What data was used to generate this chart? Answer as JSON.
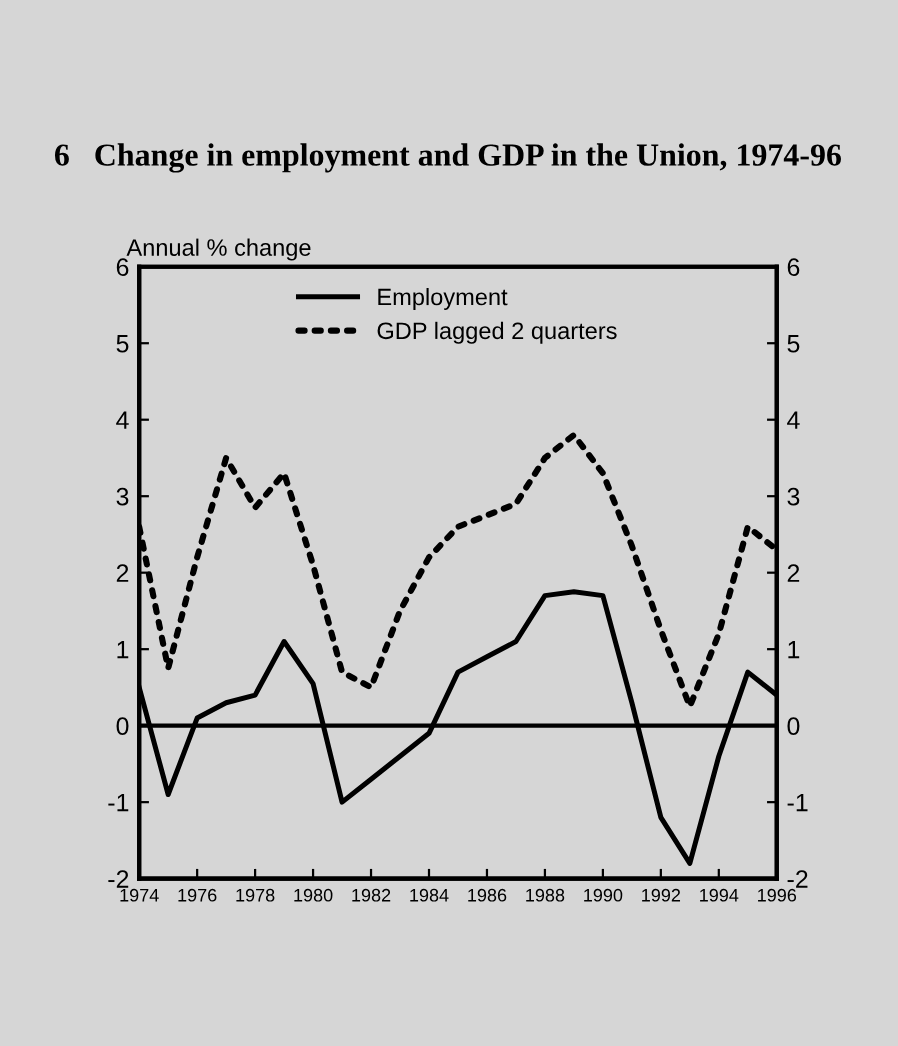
{
  "chart_data": {
    "type": "line",
    "title": "6   Change in employment and GDP in the Union, 1974-96",
    "ylabel": "Annual % change",
    "x": [
      1974,
      1975,
      1976,
      1977,
      1978,
      1979,
      1980,
      1981,
      1982,
      1983,
      1984,
      1985,
      1986,
      1987,
      1988,
      1989,
      1990,
      1991,
      1992,
      1993,
      1994,
      1995,
      1996
    ],
    "series": [
      {
        "name": "Employment",
        "color": "#000000",
        "line_style": "solid",
        "values": [
          0.5,
          -0.9,
          0.1,
          0.3,
          0.4,
          1.1,
          0.55,
          -1.0,
          -0.7,
          -0.4,
          -0.1,
          0.7,
          0.9,
          1.1,
          1.7,
          1.75,
          1.7,
          0.3,
          -1.2,
          -1.8,
          -0.4,
          0.7,
          0.4
        ]
      },
      {
        "name": "GDP lagged 2 quarters",
        "color": "#000000",
        "line_style": "dotted",
        "values": [
          2.6,
          0.75,
          2.2,
          3.5,
          2.85,
          3.3,
          2.1,
          0.7,
          0.5,
          1.5,
          2.2,
          2.6,
          2.75,
          2.9,
          3.5,
          3.8,
          3.3,
          2.35,
          1.25,
          0.25,
          1.2,
          2.6,
          2.3
        ]
      }
    ],
    "xlim": [
      1974,
      1996
    ],
    "xticks": [
      1974,
      1976,
      1978,
      1980,
      1982,
      1984,
      1986,
      1988,
      1990,
      1992,
      1994,
      1996
    ],
    "ylim": [
      -2,
      6
    ],
    "yticks": [
      -2,
      -1,
      0,
      1,
      2,
      3,
      4,
      5,
      6
    ],
    "y2lim": [
      -2,
      6
    ],
    "y2ticks": [
      -2,
      -1,
      0,
      1,
      2,
      3,
      4,
      5,
      6
    ],
    "ref_lines": [
      {
        "axis": "y",
        "value": 0,
        "color": "#000000",
        "line_style": "solid"
      }
    ],
    "legend": "top",
    "grid": false
  }
}
